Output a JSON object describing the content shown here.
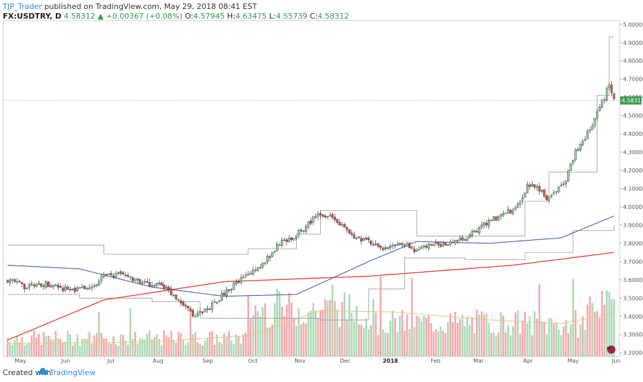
{
  "header": {
    "author": "TJP_Trader",
    "published": "published on TradingView.com, May 29, 2018 08:41 EST",
    "symbol": "FX:USDTRY, D",
    "last": "4.58312",
    "change": "+0.00367 (+0.08%)",
    "o_label": "O:",
    "o_value": "4.57945",
    "h_label": "H:",
    "h_value": "4.63475",
    "l_label": "L:",
    "l_value": "4.55739",
    "c_label": "C:",
    "c_value": "4.58312"
  },
  "footer": {
    "created": "Created with",
    "brand": "TradingView"
  },
  "colors": {
    "up_candle": "#8fd19e",
    "down_candle": "#d9534f",
    "vol_up": "#a8dcb5",
    "vol_down": "#f3a9ad",
    "ma200": "#e53935",
    "ma100": "#3f5fb0",
    "channel": "#999999",
    "vol_ma": "#f3c27a",
    "price_line": "#8fae92"
  },
  "chart_data": {
    "type": "candlestick",
    "symbol": "FX:USDTRY",
    "interval": "D",
    "x_labels": [
      "May",
      "Jun",
      "Jul",
      "Aug",
      "Sep",
      "Oct",
      "Nov",
      "Dec",
      "2018",
      "Feb",
      "Mar",
      "Apr",
      "May",
      "Jun"
    ],
    "y_ticks": [
      "5.00000",
      "4.90000",
      "4.80000",
      "4.70000",
      "4.60000",
      "4.50000",
      "4.40000",
      "4.30000",
      "4.20000",
      "4.10000",
      "4.00000",
      "3.90000",
      "3.80000",
      "3.70000",
      "3.60000",
      "3.50000",
      "3.40000",
      "3.30000",
      "3.20000"
    ],
    "ylim": [
      3.18,
      5.02
    ],
    "last_price_label": "4.58312",
    "close_path": [
      [
        0,
        3.6
      ],
      [
        8,
        3.56
      ],
      [
        16,
        3.58
      ],
      [
        24,
        3.55
      ],
      [
        34,
        3.55
      ],
      [
        40,
        3.62
      ],
      [
        48,
        3.63
      ],
      [
        56,
        3.58
      ],
      [
        64,
        3.57
      ],
      [
        72,
        3.48
      ],
      [
        78,
        3.4
      ],
      [
        84,
        3.45
      ],
      [
        92,
        3.55
      ],
      [
        100,
        3.63
      ],
      [
        104,
        3.66
      ],
      [
        108,
        3.72
      ],
      [
        113,
        3.8
      ],
      [
        118,
        3.83
      ],
      [
        124,
        3.89
      ],
      [
        128,
        3.95
      ],
      [
        134,
        3.96
      ],
      [
        140,
        3.88
      ],
      [
        146,
        3.82
      ],
      [
        152,
        3.8
      ],
      [
        158,
        3.77
      ],
      [
        164,
        3.8
      ],
      [
        170,
        3.76
      ],
      [
        176,
        3.79
      ],
      [
        182,
        3.8
      ],
      [
        188,
        3.82
      ],
      [
        194,
        3.86
      ],
      [
        200,
        3.92
      ],
      [
        206,
        3.96
      ],
      [
        212,
        4.0
      ],
      [
        216,
        4.12
      ],
      [
        220,
        4.1
      ],
      [
        224,
        4.05
      ],
      [
        228,
        4.08
      ],
      [
        232,
        4.15
      ],
      [
        236,
        4.3
      ],
      [
        240,
        4.38
      ],
      [
        244,
        4.48
      ],
      [
        248,
        4.6
      ],
      [
        250,
        4.68
      ],
      [
        252,
        4.58
      ]
    ],
    "ma200_path": [
      [
        0,
        3.27
      ],
      [
        40,
        3.49
      ],
      [
        90,
        3.59
      ],
      [
        150,
        3.62
      ],
      [
        210,
        3.68
      ],
      [
        252,
        3.75
      ]
    ],
    "ma100_path": [
      [
        0,
        3.68
      ],
      [
        30,
        3.66
      ],
      [
        60,
        3.56
      ],
      [
        90,
        3.51
      ],
      [
        120,
        3.52
      ],
      [
        150,
        3.7
      ],
      [
        170,
        3.81
      ],
      [
        200,
        3.8
      ],
      [
        230,
        3.83
      ],
      [
        252,
        3.95
      ]
    ],
    "channel_upper": [
      [
        0,
        3.79
      ],
      [
        40,
        3.74
      ],
      [
        90,
        3.74
      ],
      [
        100,
        3.77
      ],
      [
        120,
        3.85
      ],
      [
        130,
        3.98
      ],
      [
        170,
        3.84
      ],
      [
        200,
        3.84
      ],
      [
        215,
        4.03
      ],
      [
        225,
        4.19
      ],
      [
        235,
        4.19
      ],
      [
        245,
        4.61
      ],
      [
        250,
        4.93
      ],
      [
        252,
        4.93
      ]
    ],
    "channel_lower": [
      [
        0,
        3.52
      ],
      [
        30,
        3.5
      ],
      [
        60,
        3.48
      ],
      [
        80,
        3.39
      ],
      [
        130,
        3.38
      ],
      [
        150,
        3.55
      ],
      [
        165,
        3.72
      ],
      [
        190,
        3.71
      ],
      [
        215,
        3.75
      ],
      [
        235,
        3.87
      ],
      [
        252,
        3.9
      ]
    ],
    "volume": {
      "ma_color": "#f3c27a",
      "pattern": "low before Oct, elevated Oct to Dec, moderate 2018, rising into late May"
    }
  }
}
